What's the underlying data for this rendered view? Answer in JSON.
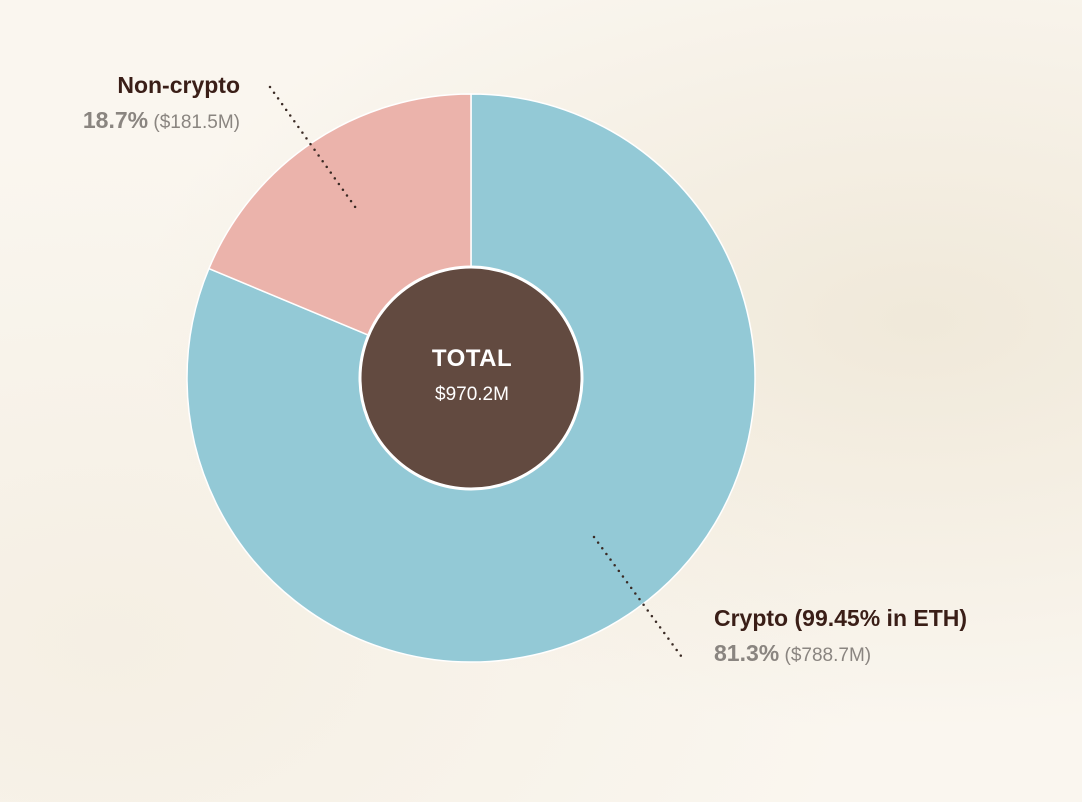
{
  "chart_data": {
    "type": "pie",
    "variant": "donut",
    "total": {
      "title": "TOTAL",
      "value_label": "$970.2M",
      "value": 970.2
    },
    "slices": [
      {
        "name": "Crypto (99.45% in ETH)",
        "percent": 81.3,
        "percent_label": "81.3%",
        "value": 788.7,
        "value_label": "($788.7M)",
        "color": "#93c9d6"
      },
      {
        "name": "Non-crypto",
        "percent": 18.7,
        "percent_label": "18.7%",
        "value": 181.5,
        "value_label": "($181.5M)",
        "color": "#ebb3ab"
      }
    ],
    "center_color": "#624a40",
    "name_color": "#3a1e17",
    "value_color": "#8a8580",
    "background_color": "#faf6ef"
  }
}
